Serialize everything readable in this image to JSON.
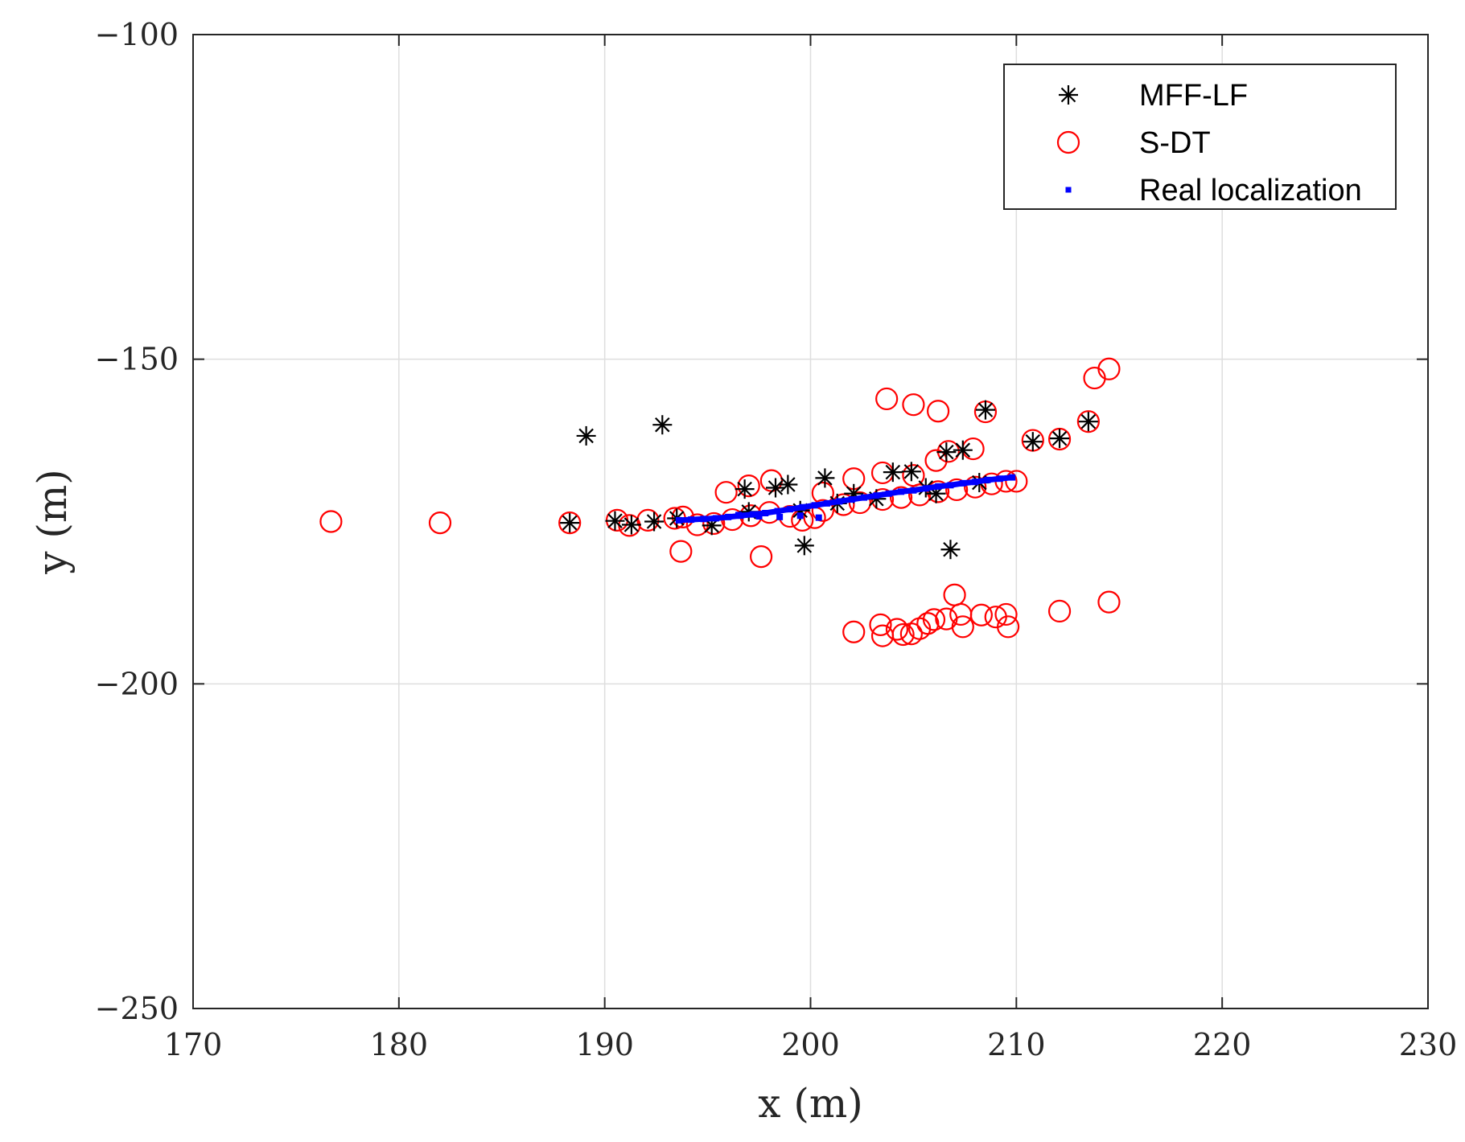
{
  "chart_data": {
    "type": "scatter",
    "title": "",
    "xlabel": "x (m)",
    "ylabel": "y (m)",
    "xlim": [
      170,
      230
    ],
    "ylim": [
      -250,
      -100
    ],
    "xticks": [
      170,
      180,
      190,
      200,
      210,
      220,
      230
    ],
    "yticks": [
      -250,
      -200,
      -150,
      -100
    ],
    "xtick_labels": [
      "170",
      "180",
      "190",
      "200",
      "210",
      "220",
      "230"
    ],
    "ytick_labels": [
      "−250",
      "−200",
      "−150",
      "−100"
    ],
    "grid": true,
    "legend_position": "top-right",
    "series": [
      {
        "name": "MFF-LF",
        "marker": "asterisk",
        "color": "#000000",
        "points": [
          [
            189.1,
            -161.8
          ],
          [
            192.8,
            -160.1
          ],
          [
            208.5,
            -157.8
          ],
          [
            213.5,
            -159.6
          ],
          [
            212.1,
            -162.2
          ],
          [
            210.8,
            -162.7
          ],
          [
            188.3,
            -175.2
          ],
          [
            190.5,
            -174.9
          ],
          [
            191.3,
            -175.5
          ],
          [
            192.4,
            -175.0
          ],
          [
            193.5,
            -174.5
          ],
          [
            195.2,
            -175.6
          ],
          [
            196.8,
            -170.0
          ],
          [
            198.3,
            -169.8
          ],
          [
            198.9,
            -169.3
          ],
          [
            200.7,
            -168.3
          ],
          [
            202.1,
            -170.7
          ],
          [
            204.0,
            -167.4
          ],
          [
            204.9,
            -167.3
          ],
          [
            206.6,
            -164.3
          ],
          [
            207.4,
            -164.0
          ],
          [
            199.7,
            -178.7
          ],
          [
            206.8,
            -179.3
          ],
          [
            197.0,
            -173.5
          ],
          [
            199.5,
            -173.3
          ],
          [
            201.3,
            -172.2
          ],
          [
            203.2,
            -171.5
          ],
          [
            205.6,
            -169.8
          ],
          [
            206.1,
            -170.7
          ],
          [
            208.2,
            -169.0
          ]
        ]
      },
      {
        "name": "S-DT",
        "marker": "circle",
        "color": "#ff0000",
        "points": [
          [
            176.7,
            -175.0
          ],
          [
            182.0,
            -175.2
          ],
          [
            188.3,
            -175.2
          ],
          [
            190.6,
            -174.8
          ],
          [
            191.2,
            -175.6
          ],
          [
            192.1,
            -174.8
          ],
          [
            193.4,
            -174.5
          ],
          [
            193.8,
            -174.3
          ],
          [
            194.5,
            -175.5
          ],
          [
            195.3,
            -175.3
          ],
          [
            196.2,
            -174.7
          ],
          [
            197.1,
            -174.1
          ],
          [
            198.0,
            -173.6
          ],
          [
            199.0,
            -174.2
          ],
          [
            199.6,
            -174.8
          ],
          [
            200.2,
            -174.4
          ],
          [
            200.6,
            -173.3
          ],
          [
            201.6,
            -172.4
          ],
          [
            202.4,
            -172.1
          ],
          [
            203.5,
            -171.6
          ],
          [
            204.4,
            -171.3
          ],
          [
            205.3,
            -170.9
          ],
          [
            206.2,
            -170.4
          ],
          [
            207.1,
            -170.1
          ],
          [
            208.0,
            -169.7
          ],
          [
            208.8,
            -169.2
          ],
          [
            209.5,
            -168.8
          ],
          [
            210.0,
            -168.8
          ],
          [
            193.7,
            -179.6
          ],
          [
            197.6,
            -180.4
          ],
          [
            195.9,
            -170.5
          ],
          [
            197.0,
            -169.5
          ],
          [
            198.1,
            -168.7
          ],
          [
            202.1,
            -168.4
          ],
          [
            203.5,
            -167.5
          ],
          [
            205.0,
            -167.9
          ],
          [
            206.1,
            -165.6
          ],
          [
            206.7,
            -164.2
          ],
          [
            207.9,
            -163.8
          ],
          [
            200.6,
            -170.6
          ],
          [
            203.7,
            -156.1
          ],
          [
            205.0,
            -157.0
          ],
          [
            206.2,
            -158.0
          ],
          [
            208.5,
            -158.1
          ],
          [
            210.8,
            -162.5
          ],
          [
            212.1,
            -162.3
          ],
          [
            213.5,
            -159.6
          ],
          [
            213.8,
            -152.9
          ],
          [
            214.5,
            -151.5
          ],
          [
            202.1,
            -192.0
          ],
          [
            203.4,
            -190.9
          ],
          [
            203.5,
            -192.6
          ],
          [
            204.2,
            -191.6
          ],
          [
            204.5,
            -192.4
          ],
          [
            204.9,
            -192.3
          ],
          [
            205.3,
            -191.5
          ],
          [
            205.7,
            -190.7
          ],
          [
            206.0,
            -190.1
          ],
          [
            206.6,
            -190.0
          ],
          [
            207.0,
            -186.3
          ],
          [
            207.3,
            -189.3
          ],
          [
            207.4,
            -191.2
          ],
          [
            208.3,
            -189.4
          ],
          [
            209.0,
            -189.7
          ],
          [
            209.5,
            -189.3
          ],
          [
            209.6,
            -191.2
          ],
          [
            212.1,
            -188.8
          ],
          [
            214.5,
            -187.4
          ]
        ]
      },
      {
        "name": "Real localization",
        "marker": "point",
        "color": "#0000ff",
        "points": [
          [
            193.6,
            -174.8
          ],
          [
            194.2,
            -174.7
          ],
          [
            194.8,
            -174.6
          ],
          [
            195.4,
            -174.5
          ],
          [
            196.0,
            -174.3
          ],
          [
            196.6,
            -174.1
          ],
          [
            197.2,
            -173.9
          ],
          [
            197.8,
            -173.7
          ],
          [
            198.4,
            -173.4
          ],
          [
            199.0,
            -173.1
          ],
          [
            199.6,
            -172.8
          ],
          [
            200.2,
            -172.5
          ],
          [
            200.8,
            -172.2
          ],
          [
            201.4,
            -171.9
          ],
          [
            202.0,
            -171.6
          ],
          [
            202.6,
            -171.3
          ],
          [
            203.2,
            -171.0
          ],
          [
            203.8,
            -170.7
          ],
          [
            204.4,
            -170.4
          ],
          [
            205.0,
            -170.2
          ],
          [
            205.6,
            -169.9
          ],
          [
            206.2,
            -169.6
          ],
          [
            206.8,
            -169.4
          ],
          [
            207.4,
            -169.1
          ],
          [
            208.0,
            -168.9
          ],
          [
            208.6,
            -168.6
          ],
          [
            209.2,
            -168.4
          ],
          [
            209.8,
            -168.2
          ],
          [
            196.5,
            -174.0
          ],
          [
            197.5,
            -174.2
          ],
          [
            198.5,
            -174.3
          ],
          [
            199.5,
            -174.1
          ],
          [
            200.4,
            -174.4
          ]
        ]
      }
    ]
  }
}
